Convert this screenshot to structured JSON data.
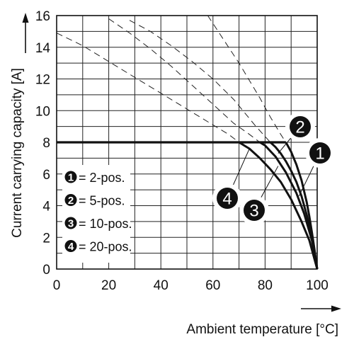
{
  "chart_data": {
    "type": "line",
    "xlabel": "Ambient temperature [°C]",
    "ylabel": "Current carrying capacity [A]",
    "xlim": [
      0,
      100
    ],
    "ylim": [
      0,
      16
    ],
    "x_ticks": [
      "0",
      "20",
      "40",
      "60",
      "80",
      "100"
    ],
    "y_ticks": [
      "0",
      "2",
      "4",
      "6",
      "8",
      "10",
      "12",
      "14",
      "16"
    ],
    "grid": true,
    "legend_position": "left",
    "legend": [
      {
        "marker": "1",
        "label": "= 2-pos."
      },
      {
        "marker": "2",
        "label": "= 5-pos."
      },
      {
        "marker": "3",
        "label": "= 10-pos."
      },
      {
        "marker": "4",
        "label": "= 20-pos."
      }
    ],
    "limit_line": {
      "y": 8,
      "x": [
        0,
        88
      ]
    },
    "series": [
      {
        "marker": "1",
        "x": [
          88,
          90,
          92,
          94,
          96,
          97,
          98,
          99,
          100
        ],
        "y": [
          8.0,
          7.4,
          6.6,
          5.6,
          4.2,
          3.3,
          2.3,
          1.2,
          0.0
        ],
        "extension_x": [
          58,
          62,
          66,
          70,
          74,
          78,
          82,
          86,
          88
        ],
        "extension_y": [
          16.0,
          15.0,
          14.0,
          13.0,
          11.9,
          10.8,
          9.6,
          8.5,
          8.0
        ]
      },
      {
        "marker": "2",
        "x": [
          82,
          84,
          86,
          88,
          90,
          92,
          94,
          96,
          98,
          100
        ],
        "y": [
          8.0,
          7.7,
          7.3,
          6.8,
          6.2,
          5.5,
          4.6,
          3.4,
          2.0,
          0.0
        ],
        "extension_x": [
          28,
          36,
          44,
          52,
          60,
          68,
          76,
          82
        ],
        "extension_y": [
          15.7,
          15.0,
          14.1,
          13.1,
          12.0,
          10.7,
          9.1,
          8.0
        ]
      },
      {
        "marker": "3",
        "x": [
          78,
          80,
          84,
          88,
          92,
          95,
          98,
          100
        ],
        "y": [
          8.0,
          7.8,
          7.1,
          6.1,
          4.8,
          3.5,
          1.8,
          0.0
        ],
        "extension_x": [
          20,
          28,
          36,
          44,
          52,
          60,
          68,
          74,
          78
        ],
        "extension_y": [
          15.8,
          14.9,
          13.9,
          12.8,
          11.6,
          10.4,
          9.2,
          8.5,
          8.0
        ]
      },
      {
        "marker": "4",
        "x": [
          70,
          74,
          78,
          82,
          86,
          90,
          94,
          97,
          100
        ],
        "y": [
          8.0,
          7.6,
          7.0,
          6.3,
          5.5,
          4.4,
          3.0,
          1.8,
          0.0
        ],
        "extension_x": [
          0,
          10,
          20,
          30,
          40,
          50,
          60,
          66,
          70
        ],
        "extension_y": [
          14.9,
          14.1,
          13.1,
          12.1,
          11.1,
          10.1,
          9.1,
          8.5,
          8.0
        ]
      }
    ]
  }
}
